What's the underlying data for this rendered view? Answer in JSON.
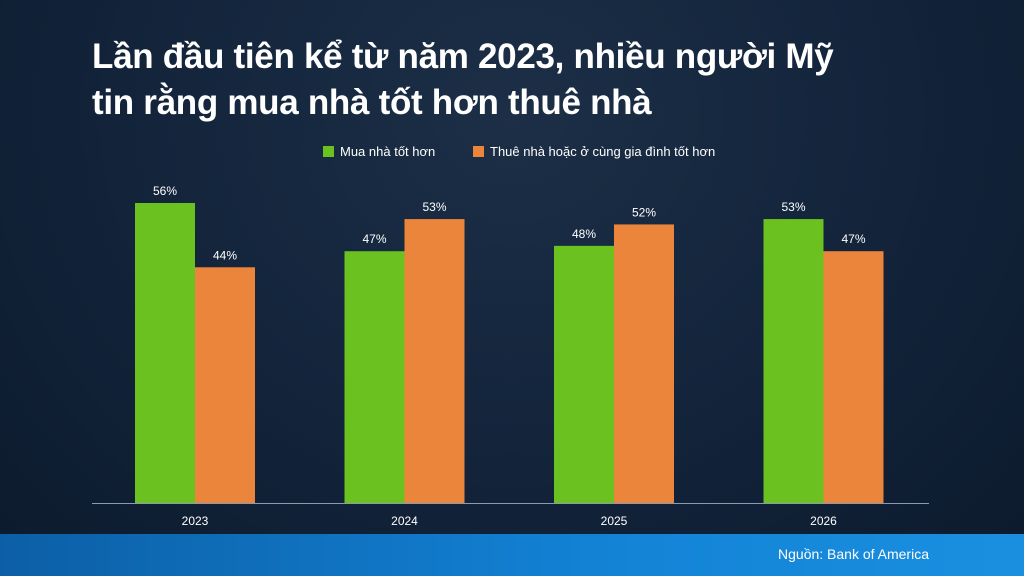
{
  "title_lines": [
    "Lần đầu tiên kể từ năm 2023, nhiều người Mỹ",
    "tin rằng mua nhà tốt hơn thuê nhà"
  ],
  "source": "Nguồn: Bank of America",
  "colors": {
    "buy": "#6ac11f",
    "rent": "#eb853b",
    "axis": "#8a9bb0",
    "background": "#12233a",
    "footer": "#1383d6"
  },
  "chart_data": {
    "type": "bar",
    "categories": [
      "2023",
      "2024",
      "2025",
      "2026"
    ],
    "series": [
      {
        "name": "Mua nhà tốt hơn",
        "values": [
          56,
          47,
          48,
          53
        ],
        "labels": [
          "56%",
          "47%",
          "48%",
          "53%"
        ]
      },
      {
        "name": "Thuê nhà hoặc ở cùng gia đình tốt hơn",
        "values": [
          44,
          53,
          52,
          47
        ],
        "labels": [
          "44%",
          "53%",
          "52%",
          "47%"
        ]
      }
    ],
    "ylim": [
      0,
      56
    ],
    "legend": "top-center",
    "grid": false
  }
}
